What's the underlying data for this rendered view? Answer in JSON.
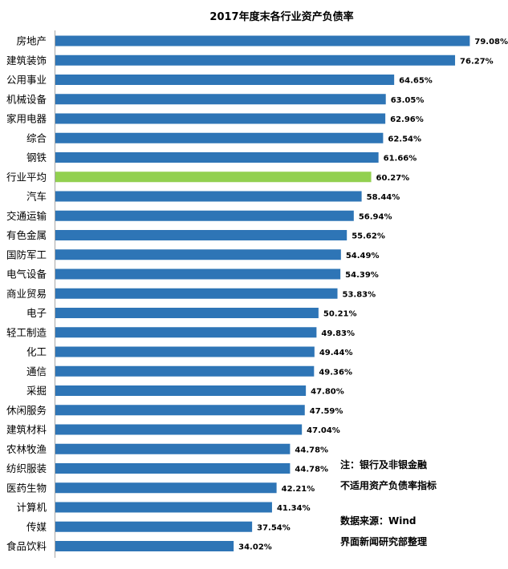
{
  "chart_data": {
    "type": "bar",
    "orientation": "horizontal",
    "title": "2017年度末各行业资产负债率",
    "categories": [
      "房地产",
      "建筑装饰",
      "公用事业",
      "机械设备",
      "家用电器",
      "综合",
      "钢铁",
      "行业平均",
      "汽车",
      "交通运输",
      "有色金属",
      "国防军工",
      "电气设备",
      "商业贸易",
      "电子",
      "轻工制造",
      "化工",
      "通信",
      "采掘",
      "休闲服务",
      "建筑材料",
      "农林牧渔",
      "纺织服装",
      "医药生物",
      "计算机",
      "传媒",
      "食品饮料"
    ],
    "values": [
      79.08,
      76.27,
      64.65,
      63.05,
      62.96,
      62.54,
      61.66,
      60.27,
      58.44,
      56.94,
      55.62,
      54.49,
      54.39,
      53.83,
      50.21,
      49.83,
      49.44,
      49.36,
      47.8,
      47.59,
      47.04,
      44.78,
      44.78,
      42.21,
      41.34,
      37.54,
      34.02
    ],
    "value_labels": [
      "79.08%",
      "76.27%",
      "64.65%",
      "63.05%",
      "62.96%",
      "62.54%",
      "61.66%",
      "60.27%",
      "58.44%",
      "56.94%",
      "55.62%",
      "54.49%",
      "54.39%",
      "53.83%",
      "50.21%",
      "49.83%",
      "49.44%",
      "49.36%",
      "47.80%",
      "47.59%",
      "47.04%",
      "44.78%",
      "44.78%",
      "42.21%",
      "41.34%",
      "37.54%",
      "34.02%"
    ],
    "highlight_category": "行业平均",
    "xlim": [
      0,
      80
    ],
    "xlabel": "",
    "ylabel": "",
    "grid": false,
    "legend": "none",
    "colors": {
      "bar": "#2e75b6",
      "highlight": "#92d050",
      "axis": "#a6a6a6"
    }
  },
  "notes": {
    "line1": "注：银行及非银金融",
    "line2": "不适用资产负债率指标",
    "line3": "数据来源：Wind",
    "line4": "界面新闻研究部整理"
  }
}
